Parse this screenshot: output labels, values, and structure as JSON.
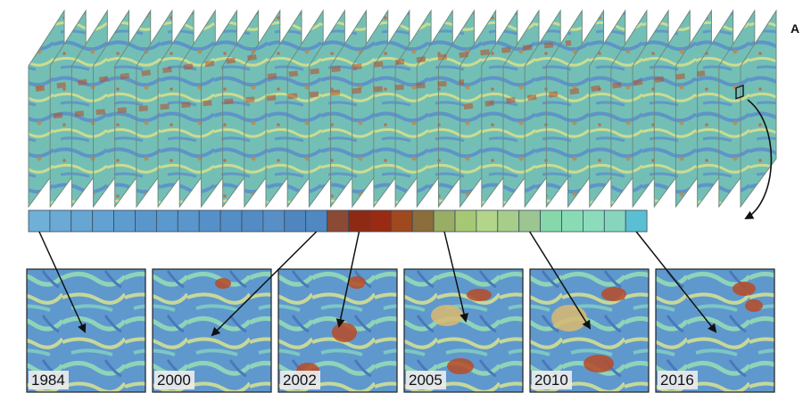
{
  "panel_label": "A",
  "stack": {
    "frame_count": 34
  },
  "strip": {
    "colors": [
      "#6fb0d6",
      "#6aaad4",
      "#66a6d3",
      "#62a2d2",
      "#5d9ccf",
      "#5996cc",
      "#5b98cd",
      "#5a96cc",
      "#5690c8",
      "#548ec6",
      "#538bc4",
      "#578fc6",
      "#4f86c0",
      "#4f88c2",
      "#8a4a36",
      "#8e2a14",
      "#9a2a12",
      "#a0481e",
      "#8c6d3c",
      "#99ad64",
      "#a6c874",
      "#b2d58a",
      "#a7cd8a",
      "#9cc592",
      "#86d8ab",
      "#88dcb4",
      "#8cdcbc",
      "#88d5be",
      "#5bbfd3"
    ]
  },
  "thumbnails": [
    {
      "year": "1984",
      "source_cell": 0
    },
    {
      "year": "2000",
      "source_cell": 13
    },
    {
      "year": "2002",
      "source_cell": 15
    },
    {
      "year": "2005",
      "source_cell": 19
    },
    {
      "year": "2010",
      "source_cell": 23
    },
    {
      "year": "2016",
      "source_cell": 28
    }
  ],
  "colors": {
    "water_blue": "#5b8ec9",
    "ground_teal": "#74c2b8",
    "vegetation_yellow": "#d7e08a",
    "disturbance_red": "#b84a26",
    "frame_border": "#6e8a7e",
    "arrow": "#111111"
  }
}
